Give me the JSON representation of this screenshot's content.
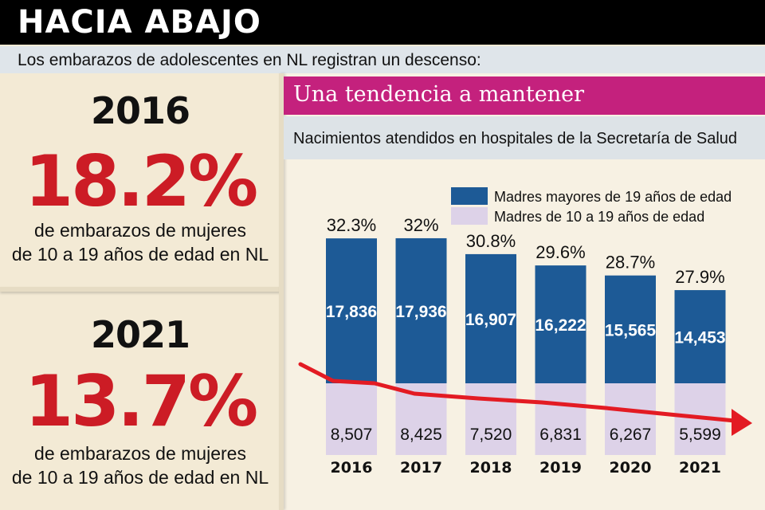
{
  "header": {
    "title": "HACIA ABAJO"
  },
  "subtitle": "Los embarazos de adolescentes en NL registran un descenso:",
  "stats": [
    {
      "year": "2016",
      "percent": "18.2%",
      "desc_line1": "de embarazos de mujeres",
      "desc_line2": "de 10 a 19 años de edad en NL"
    },
    {
      "year": "2021",
      "percent": "13.7%",
      "desc_line1": "de embarazos de mujeres",
      "desc_line2": "de 10 a 19 años de edad en NL"
    }
  ],
  "panel": {
    "title": "Una tendencia a mantener",
    "subtitle": "Nacimientos atendidos en hospitales de la Secretaría de Salud"
  },
  "colors": {
    "older": "#1d5a96",
    "teen": "#ddd2e8",
    "trend": "#e31b23",
    "accent": "#c4217d"
  },
  "chart_data": {
    "type": "bar",
    "stacked": true,
    "categories": [
      "2016",
      "2017",
      "2018",
      "2019",
      "2020",
      "2021"
    ],
    "series": [
      {
        "name": "Madres mayores de 19 años de edad",
        "values": [
          17836,
          17936,
          16907,
          16222,
          15565,
          14453
        ],
        "labels": [
          "17,836",
          "17,936",
          "16,907",
          "16,222",
          "15,565",
          "14,453"
        ]
      },
      {
        "name": "Madres de 10 a 19 años de edad",
        "values": [
          8507,
          8425,
          7520,
          6831,
          6267,
          5599
        ],
        "labels": [
          "8,507",
          "8,425",
          "7,520",
          "6,831",
          "6,267",
          "5,599"
        ]
      }
    ],
    "percent_labels": [
      "32.3%",
      "32%",
      "30.8%",
      "29.6%",
      "28.7%",
      "27.9%"
    ],
    "legend_position": "top-right",
    "trend_arrow": "descending"
  }
}
